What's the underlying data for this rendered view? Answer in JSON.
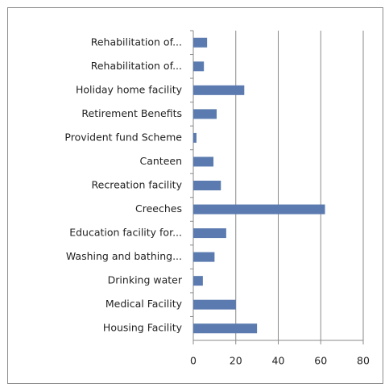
{
  "chart_data": {
    "type": "bar",
    "orientation": "horizontal",
    "categories": [
      "Rehabilitation of...",
      "Rehabilitation of...",
      "Holiday home facility",
      "Retirement Benefits",
      "Provident fund Scheme",
      "Canteen",
      "Recreation facility",
      "Creeches",
      "Education facility for...",
      "Washing and bathing...",
      "Drinking water",
      "Medical Facility",
      "Housing Facility"
    ],
    "values": [
      6.5,
      5,
      24,
      11,
      1.5,
      9.5,
      13,
      62,
      15.5,
      10,
      4.5,
      20,
      30
    ],
    "color": "#5b7bb0",
    "xlim": [
      0,
      80
    ],
    "xticks": [
      0,
      20,
      40,
      60,
      80
    ],
    "grid": true
  }
}
